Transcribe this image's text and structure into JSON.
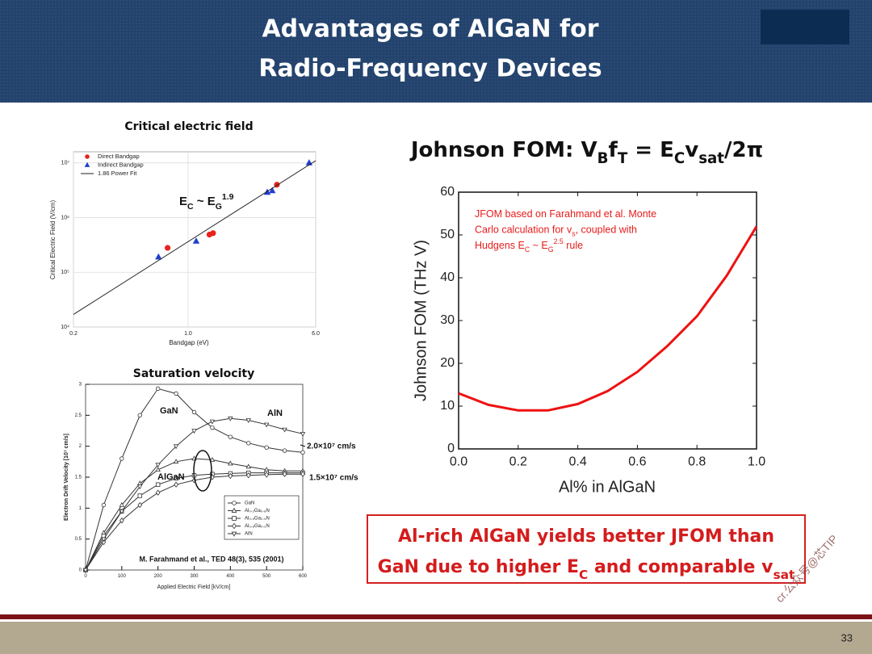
{
  "header": {
    "title": [
      "Advantages of AlGaN for",
      "Radio-Frequency Devices"
    ]
  },
  "chart_data": [
    {
      "type": "scatter",
      "title": "Critical electric field",
      "xlabel": "Bandgap (eV)",
      "ylabel": "Critical Electric Field (V/cm)",
      "xscale": "log",
      "yscale": "log",
      "xlim": [
        0.2,
        6
      ],
      "ylim": [
        10000,
        16000000
      ],
      "xticks": [
        0.2,
        {
          "value": 1,
          "label": "1.0"
        },
        {
          "value": 6,
          "label": "6.0"
        }
      ],
      "yticks": [
        {
          "value": 10000,
          "label": "10⁴"
        },
        {
          "value": 100000,
          "label": "10⁵"
        },
        {
          "value": 1000000,
          "label": "10⁶"
        },
        {
          "value": 10000000,
          "label": "10⁷"
        }
      ],
      "grid": true,
      "legend": "upper left",
      "series": [
        {
          "name": "Direct Bandgap",
          "color": "#e8231f",
          "marker": "circle",
          "x": [
            0.75,
            1.35,
            1.42,
            3.48
          ],
          "values": [
            280000,
            490000,
            520000,
            4000000
          ]
        },
        {
          "name": "Indirect Bandgap",
          "color": "#1f3fd0",
          "marker": "triangle",
          "x": [
            0.66,
            1.12,
            3.04,
            3.26,
            5.47
          ],
          "values": [
            190000,
            370000,
            2900000,
            3100000,
            10000000
          ]
        },
        {
          "name": "1.86 Power Fit",
          "color": "#222222",
          "marker": "line",
          "x": [
            0.2,
            6
          ],
          "values": [
            17000,
            11000000
          ]
        }
      ],
      "annotation": [
        "E",
        {
          "text": "C",
          "shift": "sub"
        },
        " ~ E",
        {
          "text": "G",
          "shift": "sub"
        },
        {
          "text": "1.9",
          "shift": "super"
        }
      ]
    },
    {
      "type": "line",
      "title": "Saturation velocity",
      "xlabel": "Applied Electric Field [kV/cm]",
      "ylabel": "Electron Drift Velocity [10⁷ cm/s]",
      "xlim": [
        0,
        600
      ],
      "ylim": [
        0,
        3
      ],
      "xticks": [
        0,
        100,
        200,
        300,
        400,
        500,
        600
      ],
      "yticks": [
        0,
        0.5,
        1,
        1.5,
        2,
        2.5,
        3
      ],
      "legend": "lower right",
      "x": [
        0,
        50,
        100,
        150,
        200,
        250,
        300,
        350,
        400,
        450,
        500,
        550,
        600
      ],
      "series": [
        {
          "name": "GaN",
          "color": "#333333",
          "marker": "circle",
          "values": [
            0,
            1.05,
            1.8,
            2.5,
            2.93,
            2.85,
            2.55,
            2.3,
            2.15,
            2.05,
            1.98,
            1.93,
            1.9
          ]
        },
        {
          "name": "Al₀.₂Ga₀.₈N",
          "color": "#333333",
          "marker": "triangle",
          "values": [
            0,
            0.6,
            1.05,
            1.4,
            1.62,
            1.75,
            1.8,
            1.78,
            1.72,
            1.67,
            1.62,
            1.6,
            1.6
          ]
        },
        {
          "name": "Al₀.₅Ga₀.₅N",
          "color": "#333333",
          "marker": "square",
          "values": [
            0,
            0.55,
            0.95,
            1.2,
            1.38,
            1.48,
            1.53,
            1.55,
            1.56,
            1.57,
            1.57,
            1.57,
            1.57
          ]
        },
        {
          "name": "Al₀.₈Ga₀.₂N",
          "color": "#333333",
          "marker": "diamond",
          "values": [
            0,
            0.45,
            0.8,
            1.05,
            1.25,
            1.38,
            1.45,
            1.5,
            1.52,
            1.53,
            1.54,
            1.55,
            1.55
          ]
        },
        {
          "name": "AlN",
          "color": "#333333",
          "marker": "triangle-down",
          "values": [
            0,
            0.5,
            0.95,
            1.35,
            1.7,
            2.0,
            2.25,
            2.4,
            2.45,
            2.42,
            2.35,
            2.27,
            2.2
          ]
        }
      ],
      "annotations": [
        "GaN",
        "AlN",
        "AlGaN",
        "2.0×10⁷ cm/s",
        "1.5×10⁷ cm/s",
        "M. Farahmand et al., TED 48(3), 535 (2001)"
      ]
    },
    {
      "type": "line",
      "title": [
        "Johnson FOM: V",
        {
          "text": "B",
          "shift": "sub"
        },
        "f",
        {
          "text": "T",
          "shift": "sub"
        },
        " = E",
        {
          "text": "C",
          "shift": "sub"
        },
        "v",
        {
          "text": "sat",
          "shift": "sub"
        },
        "/2π"
      ],
      "xlabel": "Al% in AlGaN",
      "ylabel": "Johnson FOM (THz V)",
      "xlim": [
        0,
        1
      ],
      "ylim": [
        0,
        60
      ],
      "xticks": [
        {
          "value": 0,
          "label": "0.0"
        },
        0.2,
        0.4,
        0.6,
        0.8,
        {
          "value": 1,
          "label": "1.0"
        }
      ],
      "yticks": [
        0,
        10,
        20,
        30,
        40,
        50,
        60
      ],
      "x": [
        0,
        0.1,
        0.2,
        0.3,
        0.4,
        0.5,
        0.6,
        0.7,
        0.8,
        0.9,
        1.0
      ],
      "series": [
        {
          "color": "#ee1111",
          "values": [
            13,
            10.3,
            9.0,
            9.0,
            10.5,
            13.5,
            18,
            24,
            31,
            40.5,
            52
          ]
        }
      ],
      "annotation": [
        [
          "JFOM based on Farahmand et al. Monte"
        ],
        [
          "Carlo calculation for v",
          {
            "text": "s",
            "shift": "sub"
          },
          ", coupled with"
        ],
        [
          "Hudgens E",
          {
            "text": "C",
            "shift": "sub"
          },
          " ~ E",
          {
            "text": "G",
            "shift": "sub"
          },
          {
            "text": "2.5",
            "shift": "super"
          },
          " rule"
        ]
      ]
    }
  ],
  "callout": [
    [
      "Al-rich AlGaN yields better JFOM than"
    ],
    [
      "GaN due to higher E",
      {
        "text": "C",
        "shift": "sub"
      },
      " and comparable v",
      {
        "text": "sat",
        "shift": "sub"
      }
    ]
  ],
  "watermark": "cr.公众号@芯TIP",
  "page_number": "33"
}
